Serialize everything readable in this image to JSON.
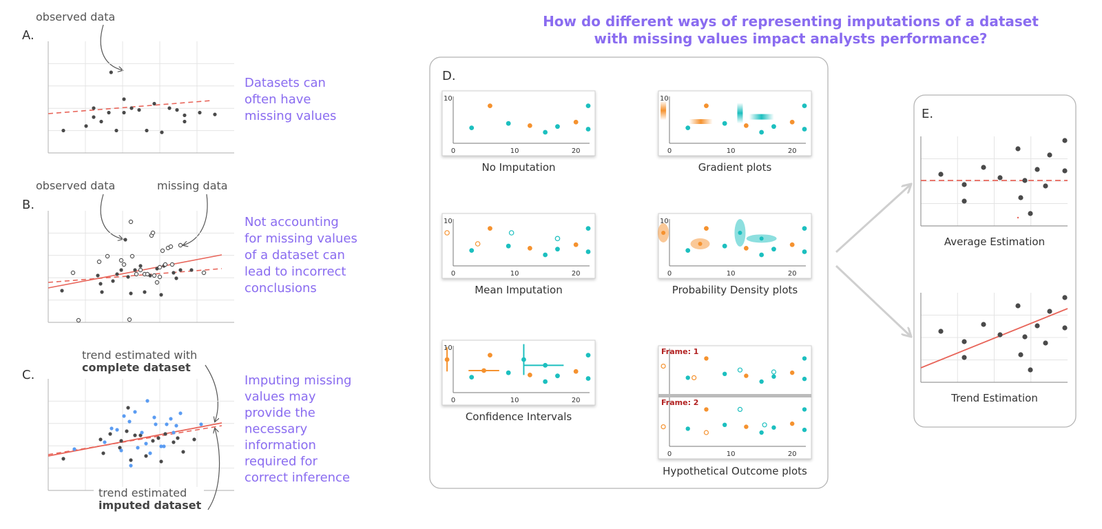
{
  "title_line1": "How do different ways of representing imputations of a dataset",
  "title_line2": "with missing values impact analysts performance?",
  "colors": {
    "observed": "#4a4a4a",
    "missing": "#4a4a4a",
    "imputed_blue": "#5b9cf2",
    "orange": "#f5922f",
    "teal": "#1cbfbf",
    "trend": "#e8655a",
    "purple": "#8a6cf0",
    "frame_text": "#b22222"
  },
  "panelA": {
    "letter": "A.",
    "annotation": "observed data",
    "side_text": [
      "Datasets can",
      "often have",
      "missing values"
    ]
  },
  "panelB": {
    "letter": "B.",
    "annotation_observed": "observed data",
    "annotation_missing": "missing data",
    "side_text": [
      "Not accounting",
      "for missing values",
      "of a dataset can",
      "lead to incorrect",
      "conclusions"
    ]
  },
  "panelC": {
    "letter": "C.",
    "annotation_top": "trend estimated with",
    "annotation_top_bold": "complete dataset",
    "annotation_bottom": "trend estimated",
    "annotation_bottom_bold": "imputed dataset",
    "side_text": [
      "Imputing missing",
      "values may",
      "provide the",
      "necessary",
      "information",
      "required for",
      "correct inference"
    ]
  },
  "panelD": {
    "letter": "D.",
    "y_tick": "10",
    "x_ticks": [
      "0",
      "10",
      "20"
    ],
    "frame1": "Frame: 1",
    "frame2": "Frame: 2",
    "plots": [
      {
        "caption": "No Imputation"
      },
      {
        "caption": "Gradient plots"
      },
      {
        "caption": "Mean Imputation"
      },
      {
        "caption": "Probability Density plots"
      },
      {
        "caption": "Confidence Intervals"
      },
      {
        "caption": "Hypothetical Outcome plots"
      }
    ]
  },
  "panelE": {
    "letter": "E.",
    "captions": [
      "Average Estimation",
      "Trend Estimation"
    ]
  },
  "chart_data": {
    "type": "scatter",
    "panelA_observed": [
      [
        2,
        2.5
      ],
      [
        5,
        3
      ],
      [
        6,
        4
      ],
      [
        6,
        5
      ],
      [
        7,
        3.5
      ],
      [
        8,
        4.5
      ],
      [
        9,
        2.5
      ],
      [
        10,
        6
      ],
      [
        10,
        4.5
      ],
      [
        11,
        5
      ],
      [
        12,
        4.8
      ],
      [
        13,
        2.5
      ],
      [
        14,
        5.5
      ],
      [
        15,
        2.3
      ],
      [
        16,
        5
      ],
      [
        17,
        4.8
      ],
      [
        18,
        3.5
      ],
      [
        18,
        4.2
      ],
      [
        20,
        4.5
      ],
      [
        22,
        4.3
      ],
      [
        8.3,
        9
      ]
    ],
    "observed_dataset": [
      [
        6,
        4.5
      ],
      [
        9,
        3
      ],
      [
        8,
        6.5
      ],
      [
        11,
        6
      ],
      [
        12,
        4
      ],
      [
        13,
        6.2
      ],
      [
        15,
        3
      ],
      [
        16,
        5
      ],
      [
        17,
        6
      ],
      [
        19,
        4.5
      ],
      [
        21,
        5
      ]
    ],
    "imputed_values": [
      [
        3,
        7.5
      ],
      [
        8,
        5
      ],
      [
        13,
        8
      ],
      [
        18,
        7
      ]
    ],
    "no_imputation_missing_count": 4
  }
}
